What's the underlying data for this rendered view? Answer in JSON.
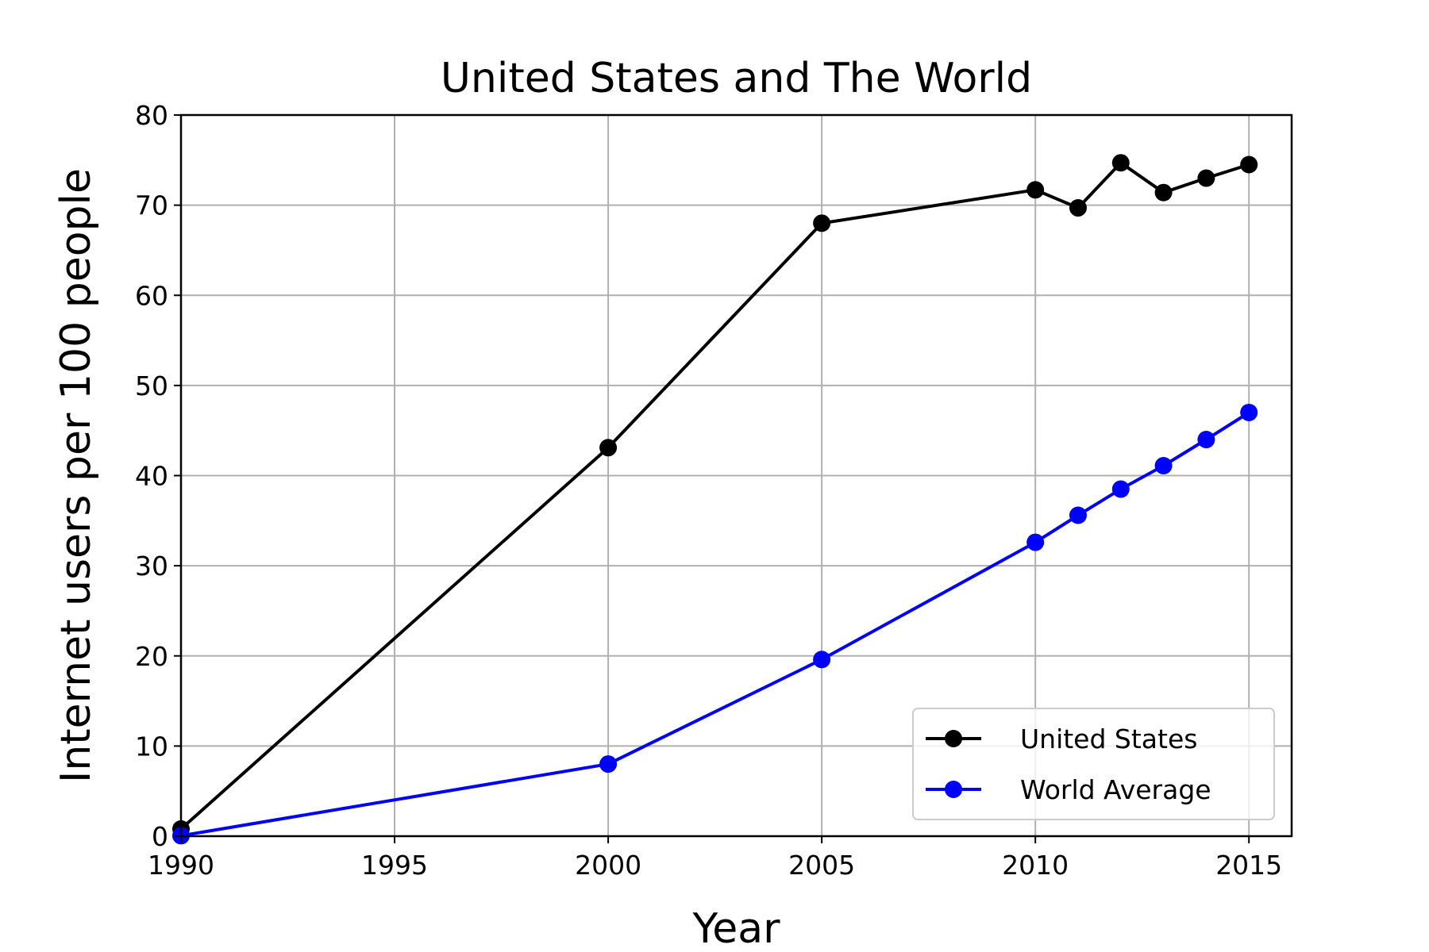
{
  "chart_data": {
    "type": "line",
    "title": "United States and The World",
    "xlabel": "Year",
    "ylabel": "Internet users per 100 people",
    "xlim": [
      1990,
      2016
    ],
    "ylim": [
      0,
      80
    ],
    "x_ticks": [
      1990,
      1995,
      2000,
      2005,
      2010,
      2015
    ],
    "y_ticks": [
      0,
      10,
      20,
      30,
      40,
      50,
      60,
      70,
      80
    ],
    "grid": true,
    "legend_position": "lower-right",
    "series": [
      {
        "name": "United States",
        "color": "#000000",
        "marker": "circle",
        "x": [
          1990,
          2000,
          2005,
          2010,
          2011,
          2012,
          2013,
          2014,
          2015
        ],
        "y": [
          0.8,
          43.1,
          68.0,
          71.7,
          69.7,
          74.7,
          71.4,
          73.0,
          74.5
        ]
      },
      {
        "name": "World Average",
        "color": "#0000ff",
        "marker": "circle",
        "x": [
          1990,
          2000,
          2005,
          2010,
          2011,
          2012,
          2013,
          2014,
          2015
        ],
        "y": [
          0.05,
          8.0,
          19.6,
          32.6,
          35.6,
          38.5,
          41.1,
          44.0,
          47.0
        ]
      }
    ]
  }
}
